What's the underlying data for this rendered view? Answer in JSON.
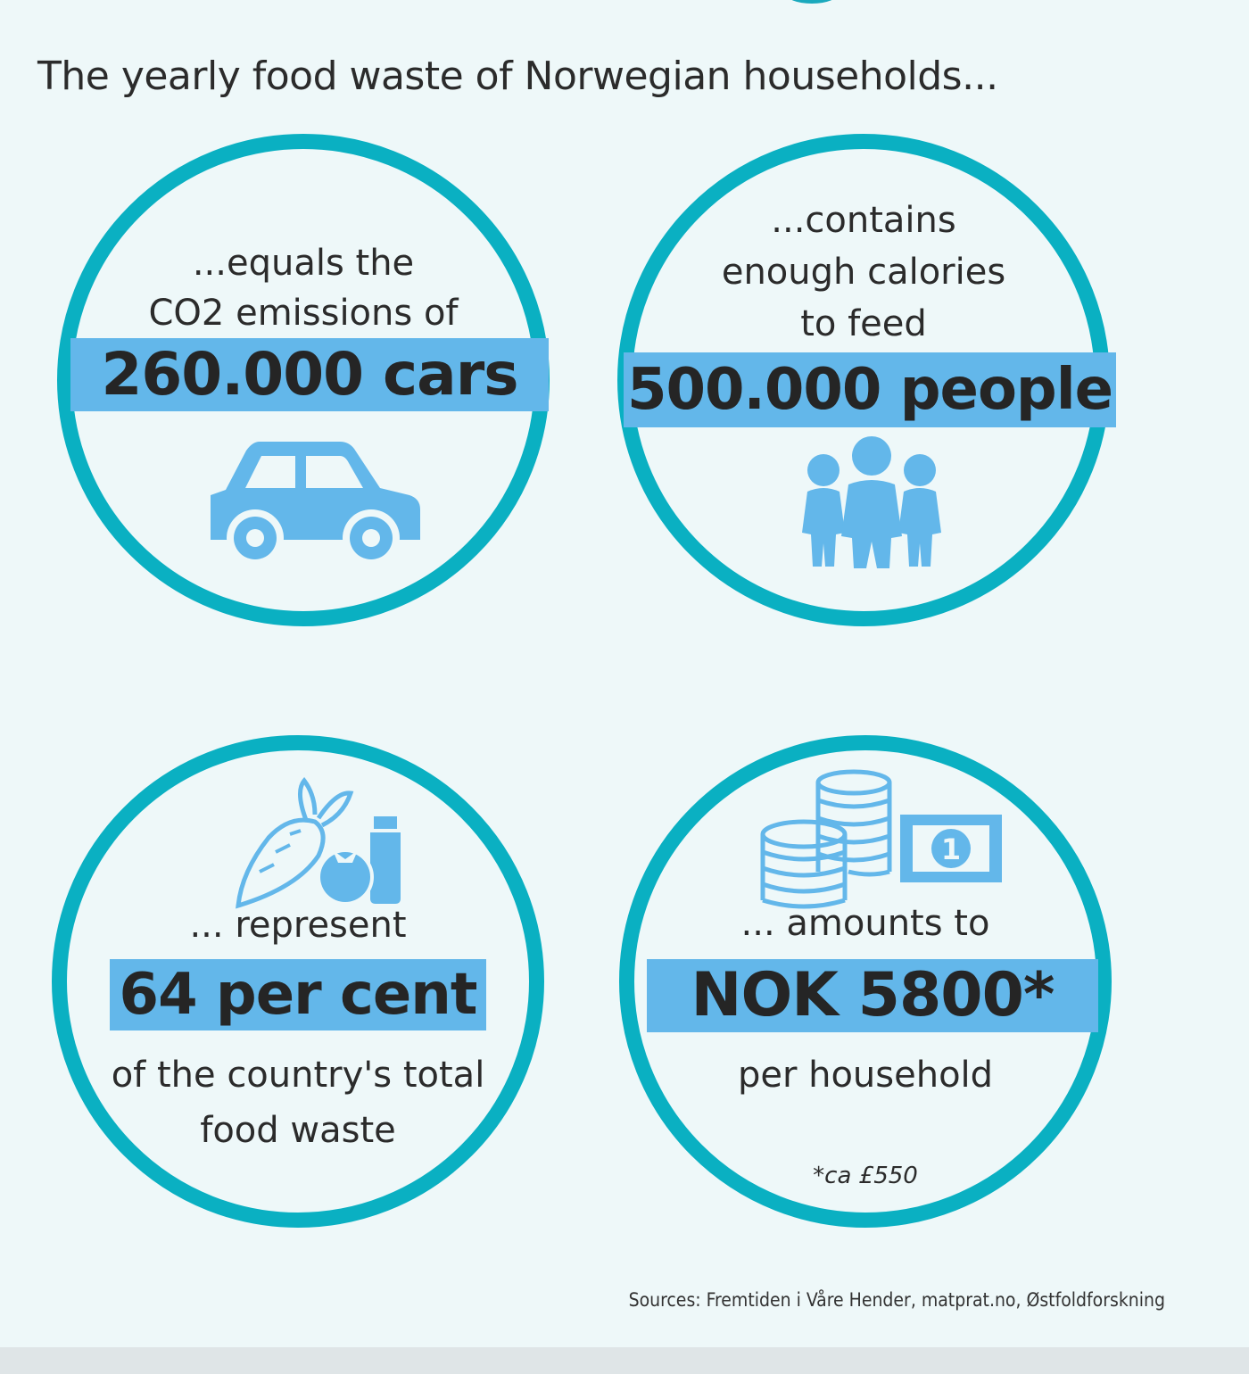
{
  "headline": "The yearly food waste of Norwegian households...",
  "colors": {
    "ring": "#0ab0c2",
    "band": "#63b7ea",
    "icon": "#63b7ea",
    "background": "#eef8f9"
  },
  "cards": {
    "cars": {
      "lead_1": "...equals the",
      "lead_2": "CO2 emissions of",
      "highlight": "260.000 cars",
      "icon": "car-icon"
    },
    "people": {
      "lead_1": "...contains",
      "lead_2": "enough calories",
      "lead_3": "to feed",
      "highlight": "500.000 people",
      "icon": "family-icon"
    },
    "percent": {
      "lead_1": "... represent",
      "highlight": "64 per cent",
      "tail_1": "of the country's total",
      "tail_2": "food waste",
      "icon": "groceries-icon"
    },
    "money": {
      "lead_1": "... amounts to",
      "highlight": "NOK 5800*",
      "tail_1": "per household",
      "footnote": "*ca £550",
      "icon": "coins-and-banknote-icon",
      "banknote_digit": "1"
    }
  },
  "sources": "Sources: Fremtiden i Våre Hender, matprat.no, Østfoldforskning"
}
